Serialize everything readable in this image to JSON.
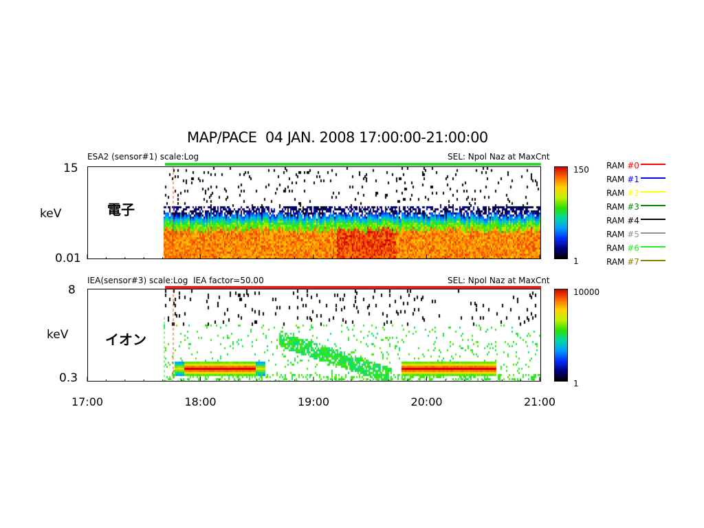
{
  "title": "MAP/PACE  04 JAN. 2008 17:00:00-21:00:00",
  "panels": [
    {
      "header_left": "ESA2 (sensor#1) scale:Log",
      "header_right": "SEL: Npol Naz at MaxCnt",
      "y_top": "15",
      "y_unit": "keV",
      "y_bottom": "0.01",
      "species_label": "電子",
      "colorbar_max": "150",
      "colorbar_min": "1",
      "status_bar_color": "#22dd22"
    },
    {
      "header_left": "IEA(sensor#3) scale:Log  IEA factor=50.00",
      "header_right": "SEL: Npol Naz at MaxCnt",
      "y_top": "8",
      "y_unit": "keV",
      "y_bottom": "0.3",
      "species_label": "イオン",
      "colorbar_max": "10000",
      "colorbar_min": "1",
      "status_bar_color": "#dd2222"
    }
  ],
  "legend": [
    {
      "prefix": "RAM ",
      "id": "#0",
      "color": "#ff0000"
    },
    {
      "prefix": "RAM ",
      "id": "#1",
      "color": "#0000ff"
    },
    {
      "prefix": "RAM ",
      "id": "#2",
      "color": "#ffff00"
    },
    {
      "prefix": "RAM ",
      "id": "#3",
      "color": "#008800"
    },
    {
      "prefix": "RAM ",
      "id": "#4",
      "color": "#000000"
    },
    {
      "prefix": "RAM ",
      "id": "#5",
      "color": "#909090"
    },
    {
      "prefix": "RAM ",
      "id": "#6",
      "color": "#22ee22"
    },
    {
      "prefix": "RAM ",
      "id": "#7",
      "color": "#8a7a00"
    }
  ],
  "chart_data": {
    "type": "heatmap",
    "title": "MAP/PACE  04 JAN. 2008 17:00:00-21:00:00",
    "x_ticks": [
      "17:00",
      "18:00",
      "19:00",
      "20:00",
      "21:00"
    ],
    "x_range": [
      "17:00",
      "21:00"
    ],
    "data_start": "17:40",
    "panels": [
      {
        "name": "電子",
        "sensor": "ESA2 (sensor#1)",
        "yscale": "log",
        "ylim_keV": [
          0.01,
          15
        ],
        "ylabel": "keV",
        "color_scale": [
          1,
          150
        ],
        "features": "broad high-count band at low energies with noisy upper edge near 1 keV"
      },
      {
        "name": "イオン",
        "sensor": "IEA(sensor#3)",
        "yscale": "log",
        "ylim_keV": [
          0.3,
          8
        ],
        "ylabel": "keV",
        "color_scale": [
          1,
          10000
        ],
        "features": "intense narrow band near 0.4 keV 17:45-18:30 and 19:40-20:35; dispersed band descending 18:45-19:35"
      }
    ]
  }
}
